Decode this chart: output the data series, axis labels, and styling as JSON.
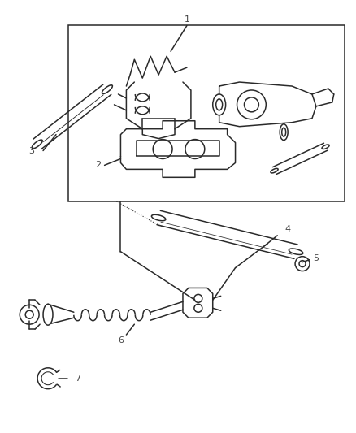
{
  "background_color": "#ffffff",
  "line_color": "#2a2a2a",
  "label_color": "#444444",
  "fig_width": 4.39,
  "fig_height": 5.33,
  "dpi": 100
}
